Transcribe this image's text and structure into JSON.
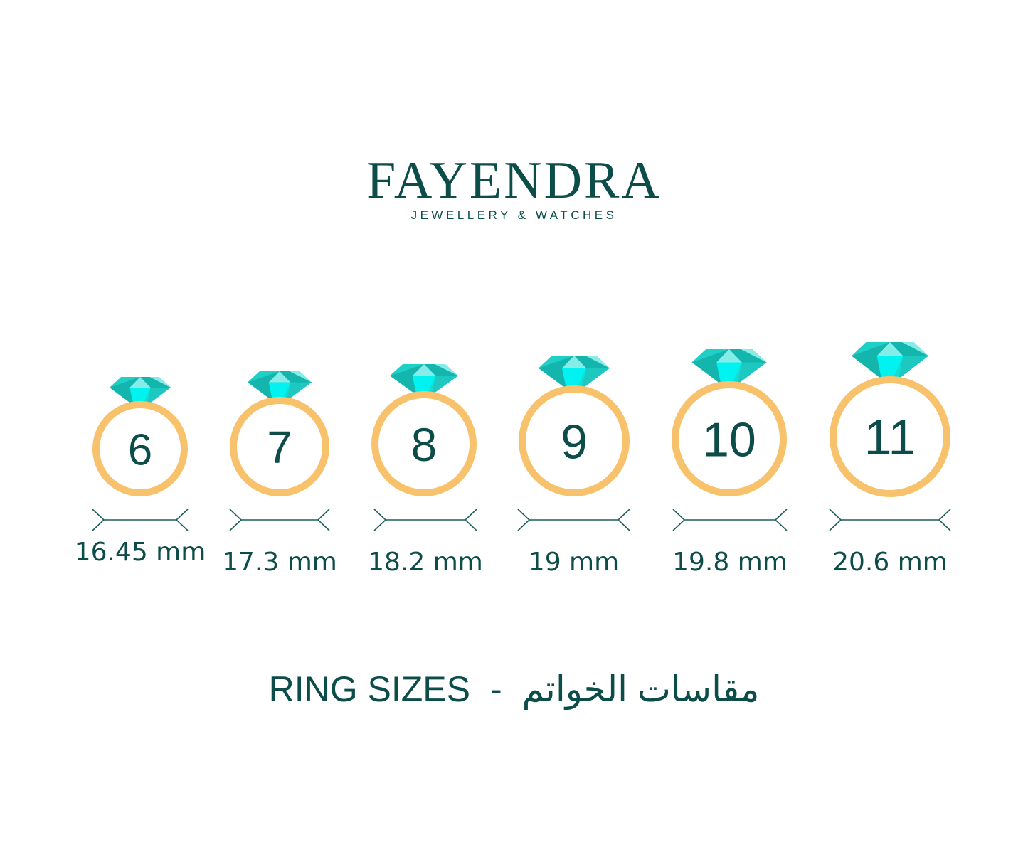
{
  "brand": {
    "name": "FAYENDRA",
    "tagline": "JEWELLERY & WATCHES"
  },
  "rings": [
    {
      "size": "6",
      "diameter": "16.45 mm"
    },
    {
      "size": "7",
      "diameter": "17.3 mm"
    },
    {
      "size": "8",
      "diameter": "18.2 mm"
    },
    {
      "size": "9",
      "diameter": "19 mm"
    },
    {
      "size": "10",
      "diameter": "19.8 mm"
    },
    {
      "size": "11",
      "diameter": "20.6 mm"
    }
  ],
  "title": {
    "english": "RING SIZES",
    "separator": "-",
    "arabic": "مقاسات الخواتم"
  },
  "colors": {
    "text": "#0d4d49",
    "ring": "#f7c26b",
    "gem_dark": "#14b5ad",
    "gem_mid": "#1fd0c6",
    "gem_light": "#86ece8",
    "gem_core": "#00f3f0"
  }
}
